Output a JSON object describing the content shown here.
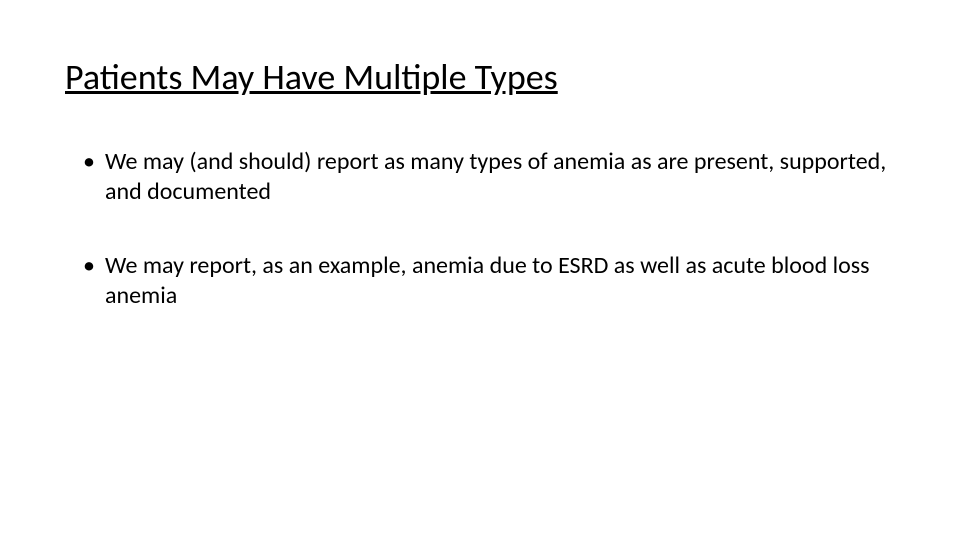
{
  "slide": {
    "title": "Patients May Have Multiple Types",
    "bullets": [
      "We may (and should) report as many types of anemia as are present, supported, and documented",
      "We may report, as an example, anemia due to ESRD as well as acute blood loss anemia"
    ],
    "style": {
      "background_color": "#ffffff",
      "text_color": "#000000",
      "title_fontsize": 36,
      "title_underline": true,
      "body_fontsize": 24,
      "font_family": "Calibri"
    }
  }
}
